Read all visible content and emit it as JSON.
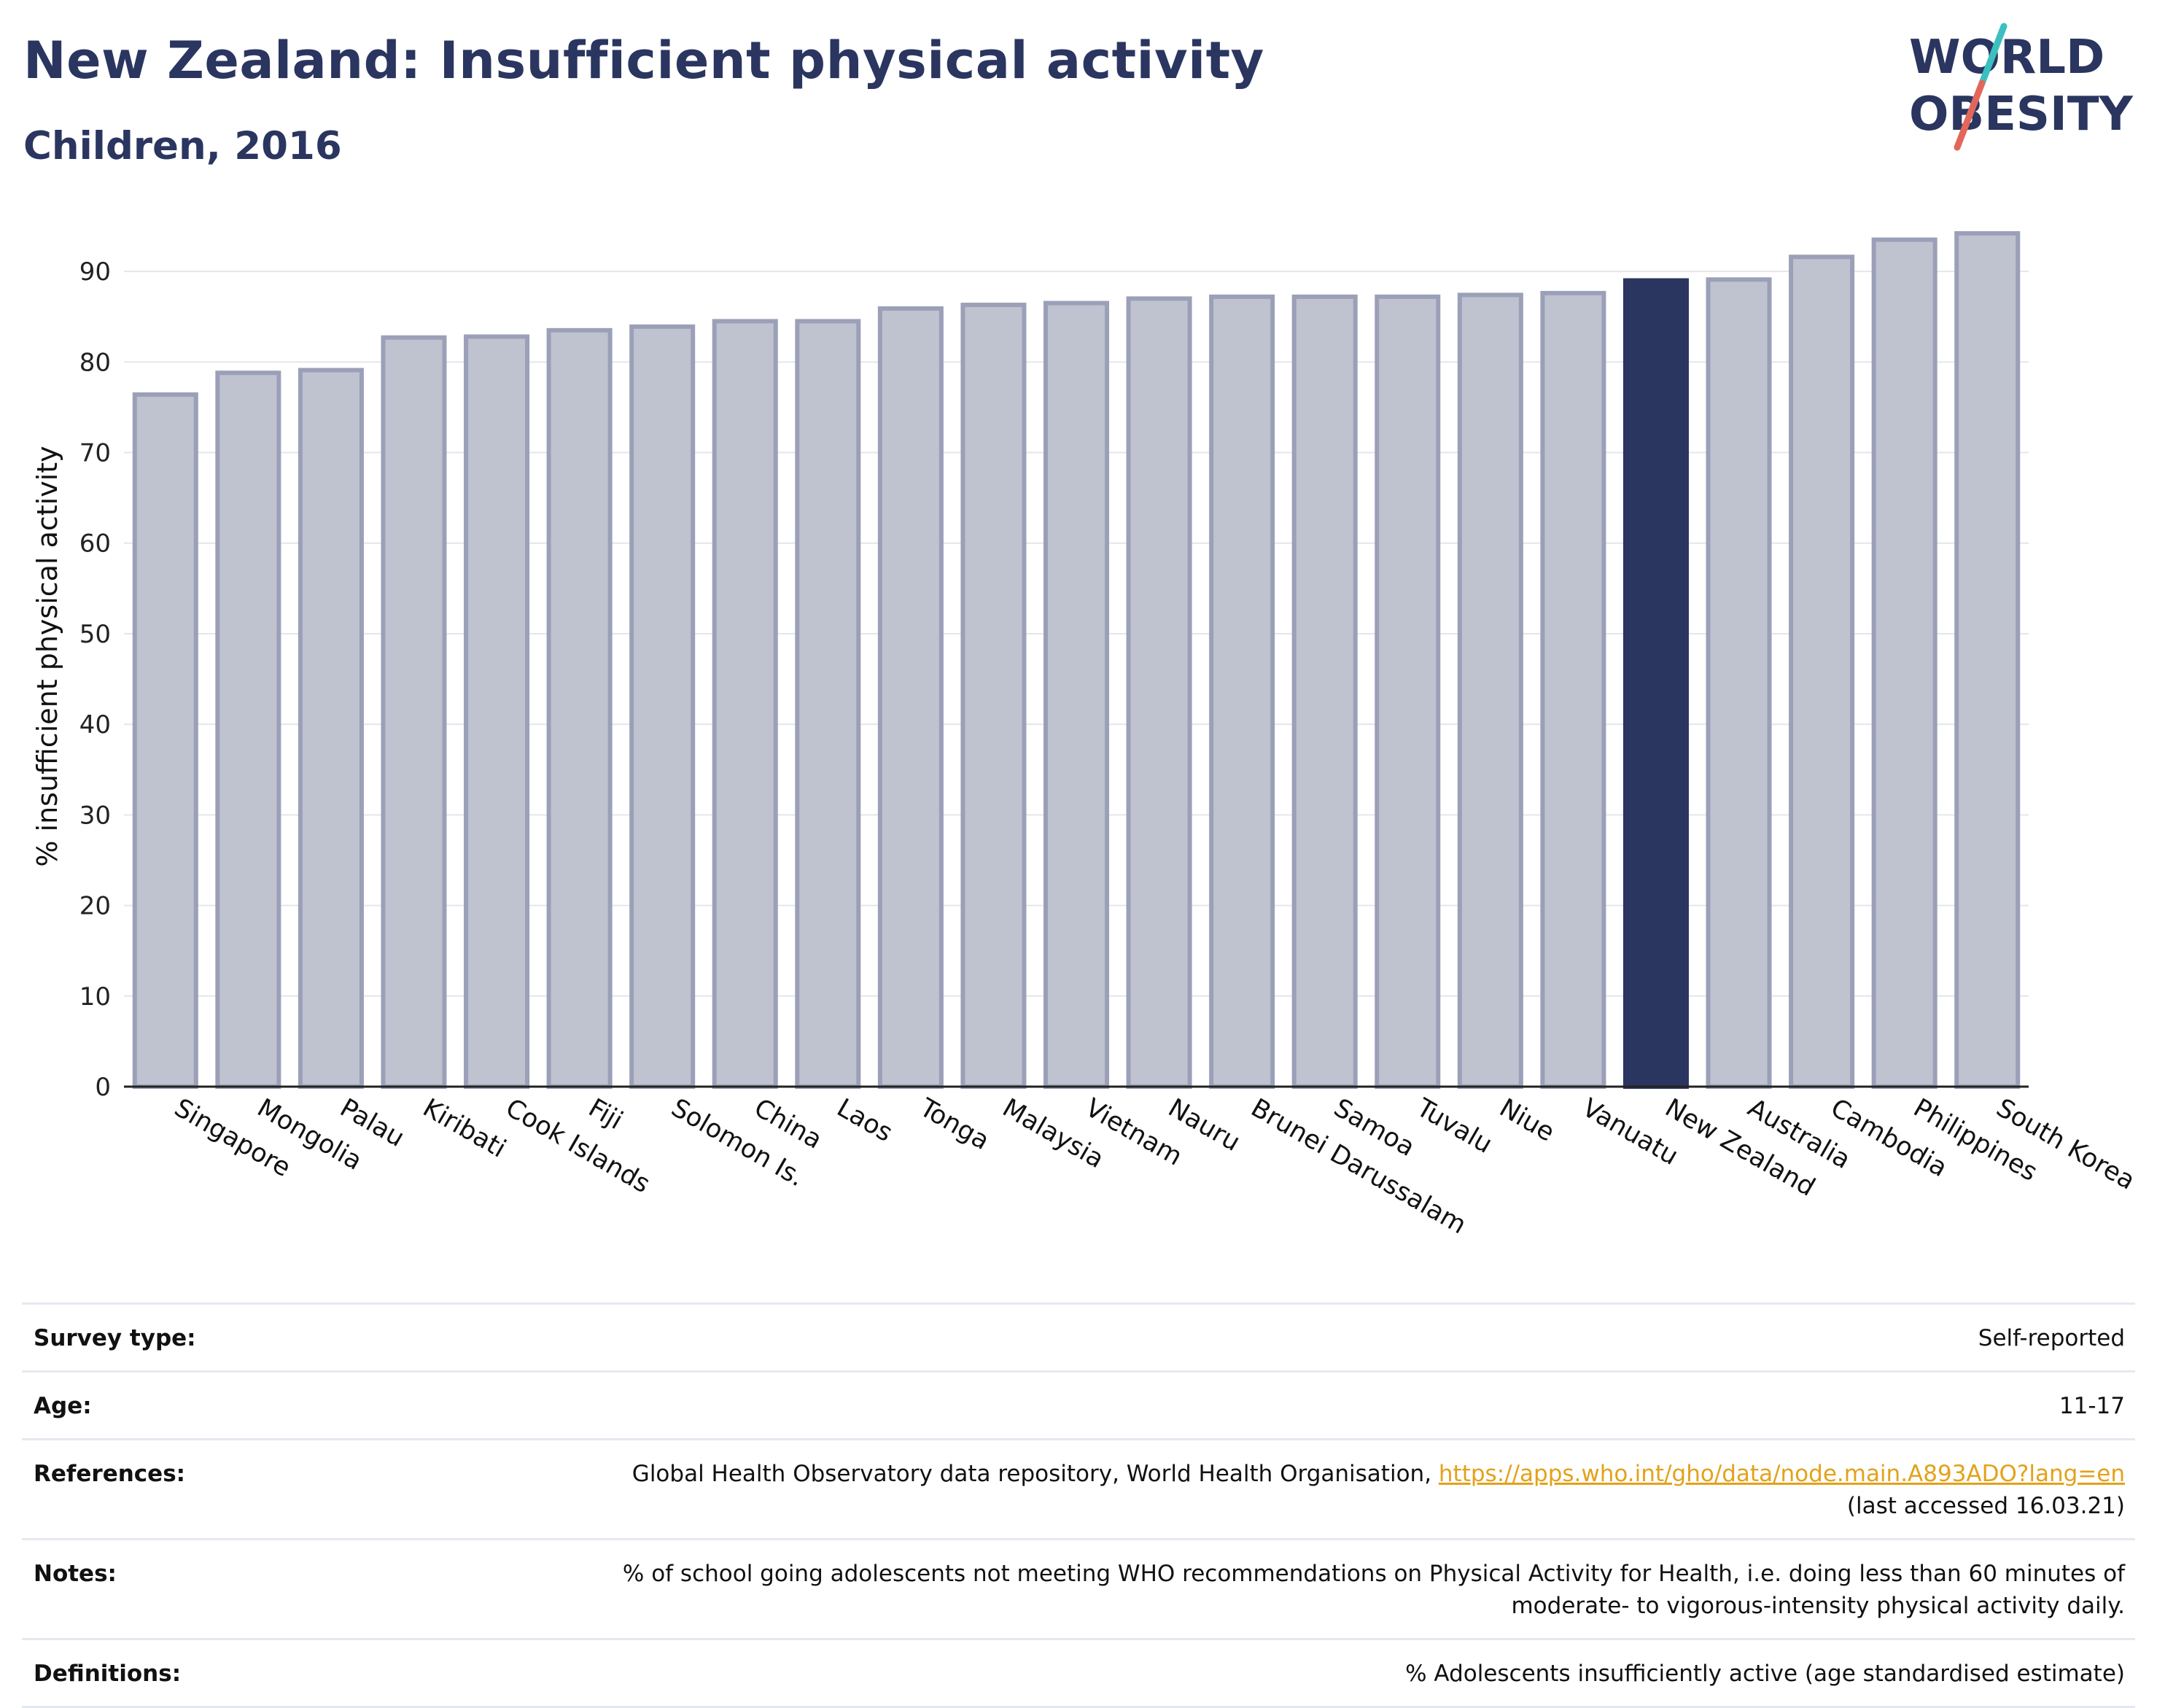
{
  "header": {
    "title": "New Zealand: Insufficient physical activity",
    "subtitle": "Children, 2016"
  },
  "logo": {
    "line1": "WORLD",
    "line2": "OBESITY",
    "accent_colors": [
      "#3cbfbf",
      "#e2675a"
    ]
  },
  "chart_data": {
    "type": "bar",
    "title": "New Zealand: Insufficient physical activity",
    "subtitle": "Children, 2016",
    "xlabel": "",
    "ylabel": "% insufficient physical activity",
    "ylim": [
      0,
      95
    ],
    "yticks": [
      0,
      10,
      20,
      30,
      40,
      50,
      60,
      70,
      80,
      90
    ],
    "grid": true,
    "categories": [
      "Singapore",
      "Mongolia",
      "Palau",
      "Kiribati",
      "Cook Islands",
      "Fiji",
      "Solomon Is.",
      "China",
      "Laos",
      "Tonga",
      "Malaysia",
      "Vietnam",
      "Nauru",
      "Brunei Darussalam",
      "Samoa",
      "Tuvalu",
      "Niue",
      "Vanuatu",
      "New Zealand",
      "Australia",
      "Cambodia",
      "Philippines",
      "South Korea"
    ],
    "values": [
      76.4,
      78.8,
      79.1,
      82.7,
      82.8,
      83.5,
      83.9,
      84.5,
      84.5,
      85.9,
      86.3,
      86.5,
      87.0,
      87.2,
      87.2,
      87.2,
      87.4,
      87.6,
      89.0,
      89.1,
      91.6,
      93.5,
      94.2
    ],
    "highlight": "New Zealand",
    "colors": {
      "bar": "#bfc2cf",
      "bar_edge": "#9ba0b8",
      "highlight": "#2a3560"
    }
  },
  "info": {
    "rows": [
      {
        "key": "Survey type:",
        "value": "Self-reported"
      },
      {
        "key": "Age:",
        "value": "11-17"
      },
      {
        "key": "References:",
        "value_pre": "Global Health Observatory data repository, World Health Organisation, ",
        "link": "https://apps.who.int/gho/data/node.main.A893ADO?lang=en",
        "value_post": "(last accessed 16.03.21)"
      },
      {
        "key": "Notes:",
        "value_line1": "% of school going adolescents not meeting WHO recommendations on Physical Activity for Health, i.e. doing less than 60 minutes of",
        "value_line2": "moderate- to vigorous-intensity physical activity daily."
      },
      {
        "key": "Definitions:",
        "value": "% Adolescents insufficiently active (age standardised estimate)"
      }
    ]
  }
}
